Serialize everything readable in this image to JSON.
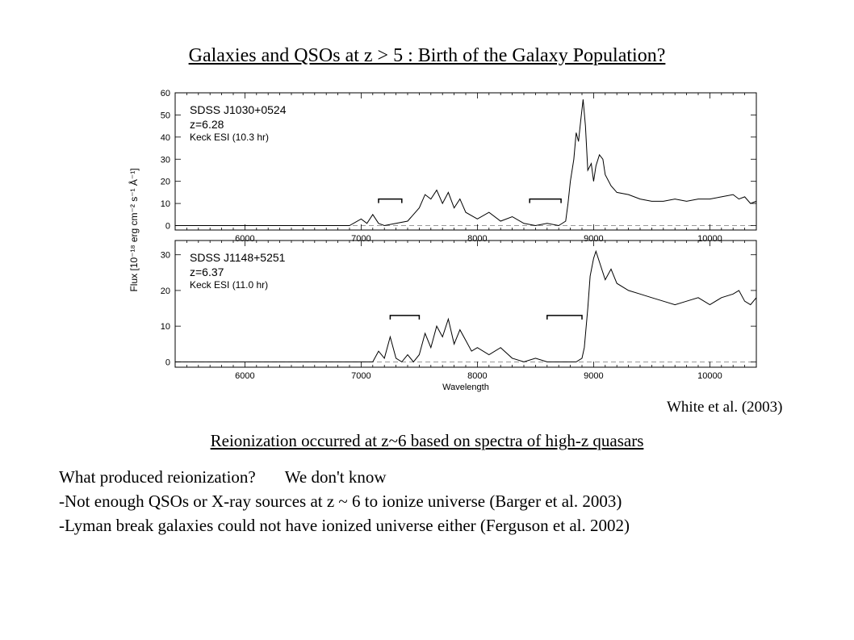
{
  "slide": {
    "title": "Galaxies and QSOs at z > 5 : Birth of the Galaxy Population?",
    "credit": "White et al. (2003)",
    "subtitle": "Reionization occurred at z~6 based on spectra of high-z quasars",
    "question": "What produced reionization?",
    "answer": "We don't know",
    "bullet1": "-Not enough QSOs or X-ray sources at z ~ 6 to ionize universe (Barger et al. 2003)",
    "bullet2": "-Lyman break galaxies could not have ionized universe either (Ferguson et al. 2002)"
  },
  "chart_data": [
    {
      "type": "line",
      "name": "SDSS J1030+0524",
      "labels": [
        "SDSS J1030+0524",
        "z=6.28",
        "Keck ESI (10.3 hr)"
      ],
      "xlim": [
        5400,
        10400
      ],
      "ylim": [
        -2,
        60
      ],
      "xticks": [
        6000,
        7000,
        8000,
        9000,
        10000
      ],
      "yticks": [
        0,
        10,
        20,
        30,
        40,
        50,
        60
      ],
      "x_tick_labels": [
        "6000",
        "7000",
        "8000",
        "9000",
        "10000"
      ],
      "y_tick_labels": [
        "0",
        "10",
        "20",
        "30",
        "40",
        "50",
        "60"
      ],
      "x": [
        5400,
        6900,
        7000,
        7050,
        7100,
        7150,
        7200,
        7300,
        7400,
        7450,
        7500,
        7550,
        7600,
        7650,
        7700,
        7750,
        7800,
        7850,
        7900,
        8000,
        8100,
        8200,
        8300,
        8400,
        8500,
        8600,
        8700,
        8760,
        8780,
        8800,
        8830,
        8850,
        8870,
        8890,
        8910,
        8930,
        8950,
        8980,
        9000,
        9020,
        9050,
        9080,
        9100,
        9150,
        9200,
        9300,
        9400,
        9500,
        9600,
        9700,
        9800,
        9900,
        10000,
        10100,
        10200,
        10250,
        10300,
        10350,
        10400
      ],
      "y": [
        0,
        0,
        3,
        1,
        5,
        1,
        0,
        1,
        2,
        5,
        8,
        14,
        12,
        16,
        10,
        15,
        8,
        12,
        6,
        3,
        6,
        2,
        4,
        1,
        0,
        1,
        0,
        2,
        10,
        20,
        30,
        42,
        38,
        48,
        57,
        45,
        25,
        28,
        20,
        27,
        32,
        30,
        23,
        18,
        15,
        14,
        12,
        11,
        11,
        12,
        11,
        12,
        12,
        13,
        14,
        12,
        13,
        10,
        11
      ]
    },
    {
      "type": "line",
      "name": "SDSS J1148+5251",
      "labels": [
        "SDSS J1148+5251",
        "z=6.37",
        "Keck ESI (11.0 hr)"
      ],
      "xlim": [
        5400,
        10400
      ],
      "ylim": [
        -1.5,
        34
      ],
      "xticks": [
        6000,
        7000,
        8000,
        9000,
        10000
      ],
      "yticks": [
        0,
        10,
        20,
        30
      ],
      "x_tick_labels": [
        "6000",
        "7000",
        "8000",
        "9000",
        "10000"
      ],
      "y_tick_labels": [
        "0",
        "10",
        "20",
        "30"
      ],
      "xlabel": "Wavelength",
      "ylabel": "Flux [10⁻¹⁸ erg cm⁻² s⁻¹ Å⁻¹]",
      "x": [
        5400,
        7100,
        7150,
        7200,
        7250,
        7300,
        7350,
        7400,
        7450,
        7500,
        7550,
        7600,
        7650,
        7700,
        7750,
        7800,
        7850,
        7900,
        7950,
        8000,
        8100,
        8200,
        8300,
        8400,
        8500,
        8600,
        8700,
        8800,
        8850,
        8900,
        8920,
        8950,
        8970,
        9000,
        9020,
        9050,
        9100,
        9150,
        9200,
        9300,
        9400,
        9500,
        9600,
        9700,
        9800,
        9900,
        10000,
        10100,
        10200,
        10250,
        10300,
        10350,
        10400
      ],
      "y": [
        0,
        0,
        3,
        1,
        7,
        1,
        0,
        2,
        0,
        2,
        8,
        4,
        10,
        7,
        12,
        5,
        9,
        6,
        3,
        4,
        2,
        4,
        1,
        0,
        1,
        0,
        0,
        0,
        0,
        1,
        4,
        15,
        24,
        29,
        31,
        28,
        23,
        26,
        22,
        20,
        19,
        18,
        17,
        16,
        17,
        18,
        16,
        18,
        19,
        20,
        17,
        16,
        18
      ]
    }
  ]
}
